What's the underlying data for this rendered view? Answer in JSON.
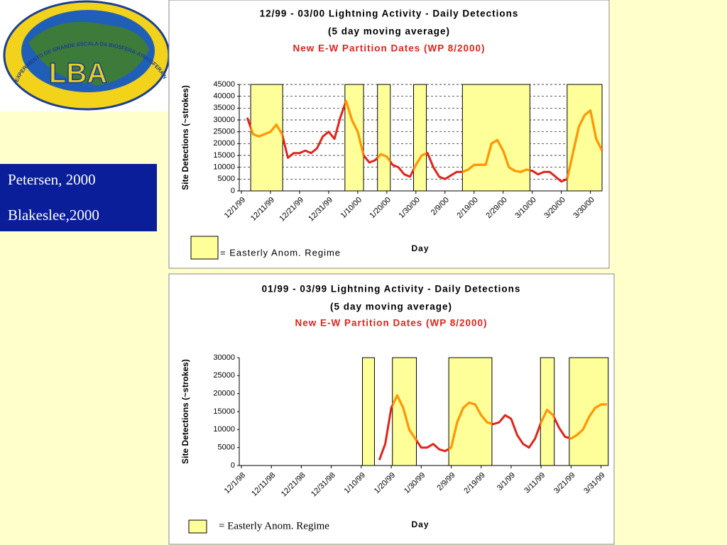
{
  "logo": {
    "title": "LBA",
    "ring_text": "EXPERIMENTO DE GRANDE ESCALA DA BIOSFERA-ATMOSFERA NA AMA"
  },
  "authors": [
    "Petersen, 2000",
    "Blakeslee,2000"
  ],
  "chart_data": [
    {
      "type": "line",
      "title": "12/99 - 03/00 Lightning Activity - Daily Detections",
      "subtitle": "(5 day moving average)",
      "annotation": "New E-W Partition Dates (WP 8/2000)",
      "y_label": "Site Detections (~strokes)",
      "x_label": "Day",
      "legend_label": "= Easterly Anom. Regime",
      "band_color": "#ffff99",
      "line_color": "#e0241b",
      "band_line_color": "#ff9900",
      "grid": true,
      "ylim": [
        0,
        45000
      ],
      "yticks": [
        0,
        5000,
        10000,
        15000,
        20000,
        25000,
        30000,
        35000,
        40000,
        45000
      ],
      "regime_bands": [
        [
          1.6,
          7.1
        ],
        [
          17.8,
          21
        ],
        [
          23.4,
          25.6
        ],
        [
          29.6,
          31.8
        ],
        [
          38,
          49.6
        ],
        [
          56,
          62
        ]
      ],
      "categories": [
        "12/1/99",
        null,
        null,
        null,
        null,
        "12/11/99",
        null,
        null,
        null,
        null,
        "12/21/99",
        null,
        null,
        null,
        null,
        "12/31/99",
        null,
        null,
        null,
        null,
        "1/10/00",
        null,
        null,
        null,
        null,
        "1/20/00",
        null,
        null,
        null,
        null,
        "1/30/00",
        null,
        null,
        null,
        null,
        "2/9/00",
        null,
        null,
        null,
        null,
        "2/19/00",
        null,
        null,
        null,
        null,
        "2/29/00",
        null,
        null,
        null,
        null,
        "3/10/00",
        null,
        null,
        null,
        null,
        "3/20/00",
        null,
        null,
        null,
        null,
        "3/30/00",
        null,
        null
      ],
      "values": [
        null,
        31000,
        24000,
        23000,
        24000,
        25000,
        28000,
        24000,
        14000,
        16000,
        16000,
        17000,
        16000,
        18000,
        23000,
        25000,
        22000,
        31000,
        38000,
        30000,
        25000,
        15000,
        12000,
        13000,
        15500,
        14500,
        11000,
        10000,
        7000,
        6000,
        11000,
        15000,
        16000,
        10000,
        6000,
        5000,
        6500,
        8000,
        8000,
        9000,
        11000,
        11000,
        11000,
        20000,
        21500,
        17000,
        10000,
        8500,
        8000,
        9000,
        8500,
        7000,
        8000,
        8000,
        6000,
        4000,
        5000,
        16000,
        27000,
        32000,
        34000,
        22000,
        17000
      ]
    },
    {
      "type": "line",
      "title": "01/99 - 03/99 Lightning Activity - Daily Detections",
      "subtitle": "(5 day moving average)",
      "annotation": "New E-W Partition Dates (WP 8/2000)",
      "y_label": "Site Detections (~strokes)",
      "x_label": "Day",
      "legend_label": "= Easterly Anom. Regime",
      "band_color": "#ffff99",
      "line_color": "#e0241b",
      "band_line_color": "#ff9900",
      "grid": false,
      "ylim": [
        0,
        30000
      ],
      "yticks": [
        0,
        5000,
        10000,
        15000,
        20000,
        25000,
        30000
      ],
      "regime_bands": [
        [
          20.2,
          22.2
        ],
        [
          25.2,
          29.2
        ],
        [
          34.6,
          41.8
        ],
        [
          49.9,
          52.2
        ],
        [
          54.7,
          61.2
        ]
      ],
      "categories": [
        "12/1/98",
        null,
        null,
        null,
        null,
        "12/11/98",
        null,
        null,
        null,
        null,
        "12/21/98",
        null,
        null,
        null,
        null,
        "12/31/98",
        null,
        null,
        null,
        null,
        "1/10/99",
        null,
        null,
        null,
        null,
        "1/20/99",
        null,
        null,
        null,
        null,
        "1/30/99",
        null,
        null,
        null,
        null,
        "2/9/99",
        null,
        null,
        null,
        null,
        "2/19/99",
        null,
        null,
        null,
        null,
        "3/1/99",
        null,
        null,
        null,
        null,
        "3/11/99",
        null,
        null,
        null,
        null,
        "3/21/99",
        null,
        null,
        null,
        null,
        "3/31/99",
        null
      ],
      "values": [
        null,
        null,
        null,
        null,
        null,
        null,
        null,
        null,
        null,
        null,
        null,
        null,
        null,
        null,
        null,
        null,
        null,
        null,
        null,
        null,
        null,
        null,
        null,
        1500,
        6000,
        16000,
        19500,
        16000,
        10000,
        7500,
        5000,
        5000,
        6000,
        4500,
        4000,
        5000,
        12000,
        16000,
        17500,
        17000,
        14000,
        12000,
        11500,
        12000,
        14000,
        13000,
        8500,
        6000,
        5000,
        7500,
        12000,
        15500,
        14000,
        10500,
        8000,
        7500,
        8500,
        10000,
        13500,
        16000,
        17000,
        17000
      ]
    }
  ]
}
